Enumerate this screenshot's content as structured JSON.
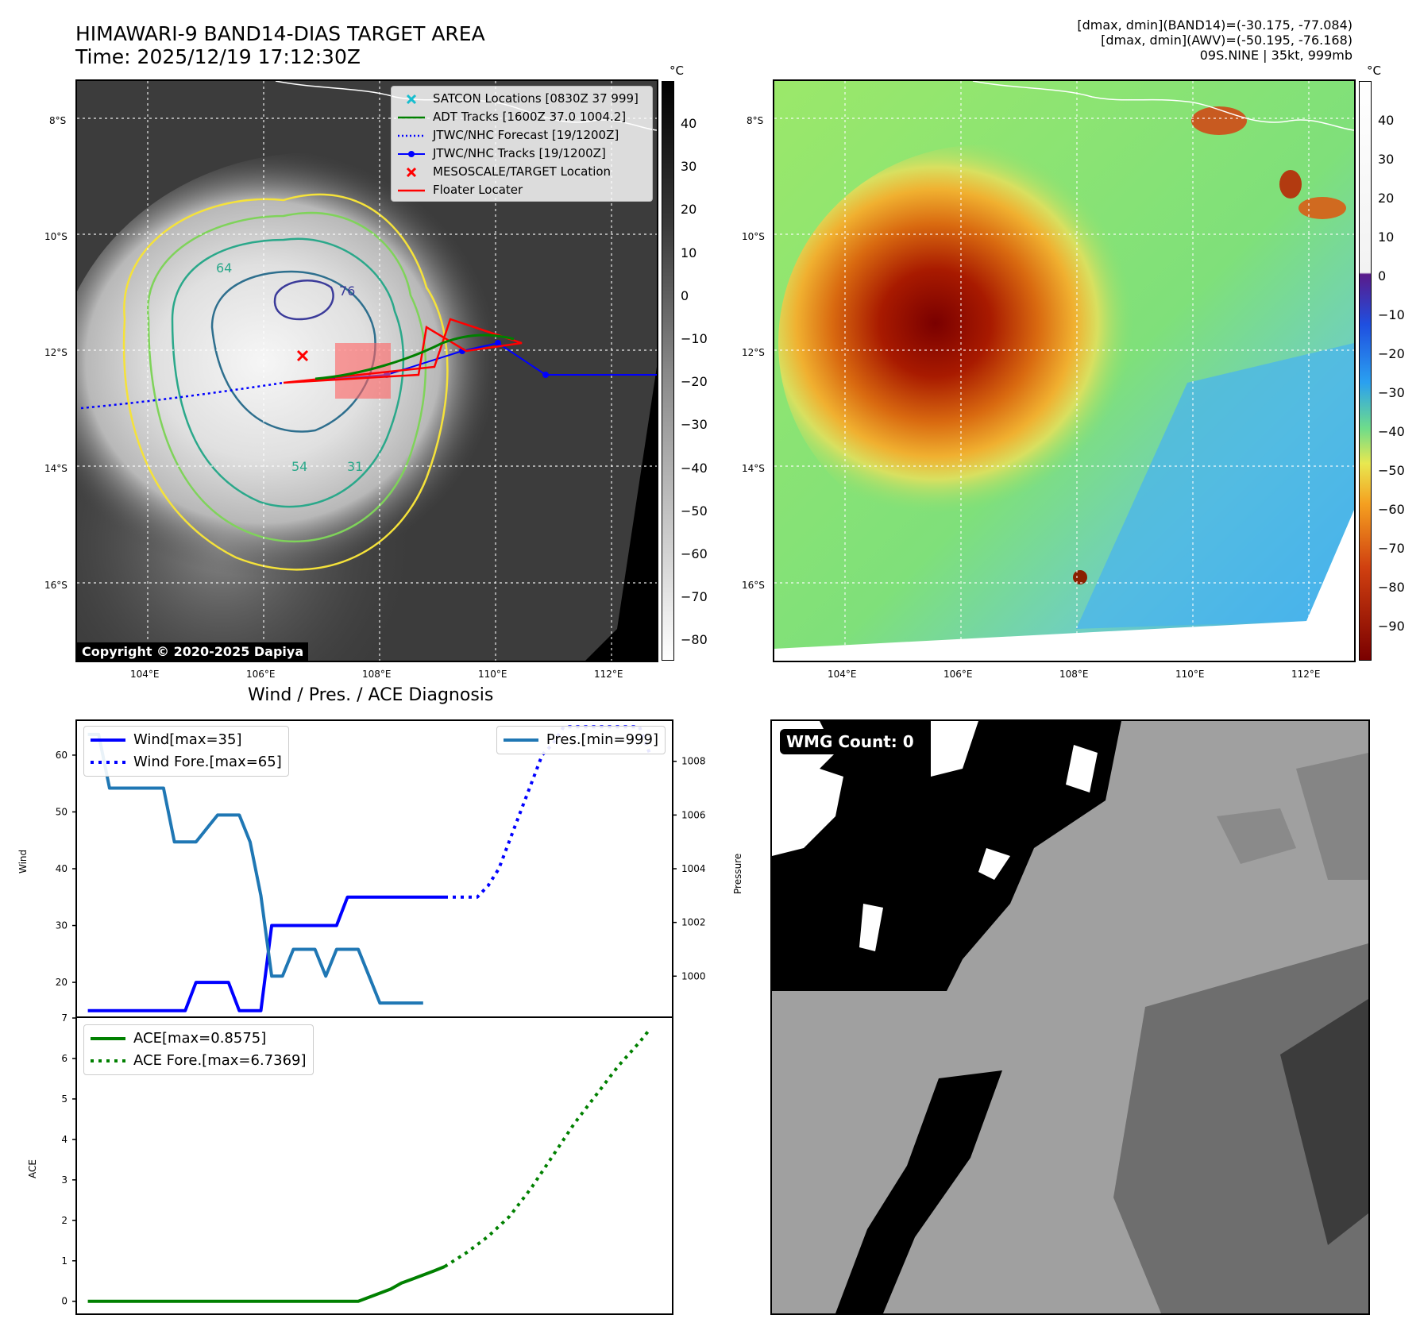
{
  "header": {
    "title_line1": "HIMAWARI-9 BAND14-DIAS TARGET AREA",
    "title_line2": "Time: 2025/12/19 17:12:30Z",
    "info_line1": "[dmax, dmin](BAND14)=(-30.175, -77.084)",
    "info_line2": "[dmax, dmin](AWV)=(-50.195, -76.168)",
    "info_line3": "09S.NINE | 35kt, 999mb"
  },
  "ir_panel": {
    "lat_labels": [
      "8°S",
      "10°S",
      "12°S",
      "14°S",
      "16°S"
    ],
    "lon_labels": [
      "104°E",
      "106°E",
      "108°E",
      "110°E",
      "112°E"
    ],
    "copyright": "Copyright © 2020-2025 Dapiya",
    "colorbar_unit": "°C",
    "colorbar_ticks": [
      "40",
      "30",
      "20",
      "10",
      "0",
      "−10",
      "−20",
      "−30",
      "−40",
      "−50",
      "−60",
      "−70",
      "−80"
    ],
    "contour_labels": [
      "64",
      "76",
      "54",
      "31"
    ],
    "legend": [
      {
        "label": "SATCON Locations [0830Z 37 999]",
        "color": "#17becf",
        "marker": "x"
      },
      {
        "label": "ADT Tracks [1600Z 37.0 1004.2]",
        "color": "#008000",
        "marker": "line"
      },
      {
        "label": "JTWC/NHC Forecast [19/1200Z]",
        "color": "#0000ff",
        "marker": "dotted"
      },
      {
        "label": "JTWC/NHC Tracks [19/1200Z]",
        "color": "#0000ff",
        "marker": "line-dot"
      },
      {
        "label": "MESOSCALE/TARGET Location",
        "color": "#ff0000",
        "marker": "x"
      },
      {
        "label": "Floater Locater",
        "color": "#ff0000",
        "marker": "line"
      }
    ]
  },
  "color_panel": {
    "lat_labels": [
      "8°S",
      "10°S",
      "12°S",
      "14°S",
      "16°S"
    ],
    "lon_labels": [
      "104°E",
      "106°E",
      "108°E",
      "110°E",
      "112°E"
    ],
    "colorbar_unit": "°C",
    "colorbar_ticks": [
      "40",
      "30",
      "20",
      "10",
      "0",
      "−10",
      "−20",
      "−30",
      "−40",
      "−50",
      "−60",
      "−70",
      "−80",
      "−90"
    ]
  },
  "diagnosis": {
    "title": "Wind / Pres. / ACE Diagnosis",
    "wind_axis_label": "Wind",
    "pressure_axis_label": "Pressure",
    "ace_axis_label": "ACE",
    "legend_wind": "Wind[max=35]",
    "legend_wind_fore": "Wind Fore.[max=65]",
    "legend_pres": "Pres.[min=999]",
    "legend_ace": "ACE[max=0.8575]",
    "legend_ace_fore": "ACE Fore.[max=6.7369]",
    "wind_ticks": [
      "60",
      "50",
      "40",
      "30",
      "20"
    ],
    "pres_ticks": [
      "1008",
      "1006",
      "1004",
      "1002",
      "1000"
    ],
    "ace_ticks": [
      "7",
      "6",
      "5",
      "4",
      "3",
      "2",
      "1",
      "0"
    ],
    "colors": {
      "wind": "#0000ff",
      "pres": "#1f77b4",
      "ace": "#008000"
    }
  },
  "wmg_panel": {
    "label": "WMG Count: 0"
  },
  "chart_data": [
    {
      "type": "line",
      "panel": "wind-pressure",
      "series": [
        {
          "name": "Wind[max=35]",
          "axis": "left",
          "style": "solid",
          "x": [
            0,
            1,
            2,
            3,
            4,
            5,
            6,
            7,
            8,
            9,
            10,
            11,
            12,
            13,
            14,
            15,
            16,
            17,
            18,
            19,
            20,
            21,
            22,
            23,
            24,
            25,
            26,
            27,
            28,
            29,
            30,
            31,
            32,
            33
          ],
          "values": [
            15,
            15,
            15,
            15,
            15,
            15,
            15,
            15,
            15,
            15,
            20,
            20,
            20,
            20,
            15,
            15,
            15,
            30,
            30,
            30,
            30,
            30,
            30,
            30,
            35,
            35,
            35,
            35,
            35,
            35,
            35,
            35,
            35,
            35
          ]
        },
        {
          "name": "Wind Fore.[max=65]",
          "axis": "left",
          "style": "dotted",
          "x": [
            33,
            34,
            35,
            36,
            37,
            38,
            39,
            40,
            41,
            42,
            43,
            44,
            45,
            46,
            47,
            48,
            49,
            50,
            51,
            52
          ],
          "values": [
            35,
            35,
            35,
            35,
            37,
            40,
            45,
            50,
            55,
            60,
            62,
            65,
            65,
            65,
            65,
            65,
            65,
            65,
            65,
            60
          ]
        },
        {
          "name": "Pres.[min=999]",
          "axis": "right",
          "style": "solid",
          "x": [
            0,
            1,
            2,
            3,
            4,
            5,
            6,
            7,
            8,
            9,
            10,
            11,
            12,
            13,
            14,
            15,
            16,
            17,
            18,
            19,
            20,
            21,
            22,
            23,
            24,
            25,
            26,
            27,
            28,
            29,
            30,
            31
          ],
          "values": [
            1009,
            1009,
            1007,
            1007,
            1007,
            1007,
            1007,
            1007,
            1005,
            1005,
            1005,
            1005.5,
            1006,
            1006,
            1006,
            1005,
            1003,
            1000,
            1000,
            1001,
            1001,
            1001,
            1000,
            1001,
            1001,
            1001,
            1000,
            999,
            999,
            999,
            999,
            999
          ]
        }
      ],
      "ylim_left": [
        14,
        66
      ],
      "ylim_right": [
        998.5,
        1009.5
      ]
    },
    {
      "type": "line",
      "panel": "ace",
      "series": [
        {
          "name": "ACE[max=0.8575]",
          "style": "solid",
          "x": [
            0,
            5,
            10,
            15,
            20,
            25,
            26,
            27,
            28,
            29,
            30,
            31,
            32,
            33
          ],
          "values": [
            0,
            0,
            0,
            0,
            0,
            0,
            0.1,
            0.2,
            0.3,
            0.45,
            0.55,
            0.65,
            0.75,
            0.8575
          ]
        },
        {
          "name": "ACE Fore.[max=6.7369]",
          "style": "dotted",
          "x": [
            33,
            35,
            37,
            39,
            41,
            43,
            45,
            47,
            49,
            51,
            52
          ],
          "values": [
            0.8575,
            1.2,
            1.6,
            2.1,
            2.8,
            3.6,
            4.4,
            5.1,
            5.8,
            6.4,
            6.7369
          ]
        }
      ],
      "ylim": [
        -0.3,
        7
      ]
    }
  ]
}
